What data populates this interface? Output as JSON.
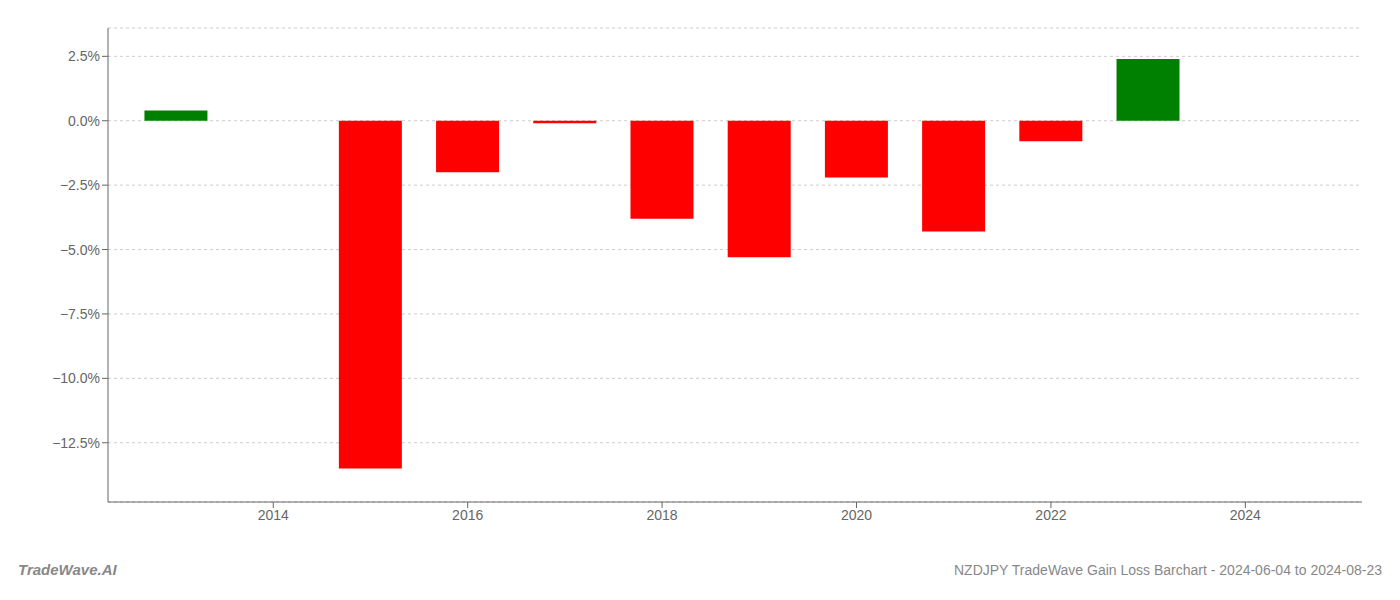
{
  "chart_data": {
    "type": "bar",
    "x": [
      2013,
      2015,
      2016,
      2017,
      2018,
      2019,
      2020,
      2021,
      2022,
      2023
    ],
    "values": [
      0.004,
      -0.135,
      -0.02,
      -0.001,
      -0.038,
      -0.053,
      -0.022,
      -0.043,
      -0.008,
      0.024
    ],
    "colors": [
      "#008000",
      "#ff0000",
      "#ff0000",
      "#ff0000",
      "#ff0000",
      "#ff0000",
      "#ff0000",
      "#ff0000",
      "#ff0000",
      "#008000"
    ],
    "xlim": [
      2012.3,
      2025.2
    ],
    "xticks": [
      2014,
      2016,
      2018,
      2020,
      2022,
      2024
    ],
    "ylim": [
      -0.148,
      0.036
    ],
    "yticks": [
      {
        "value": -0.125,
        "label": "−12.5%"
      },
      {
        "value": -0.1,
        "label": "−10.0%"
      },
      {
        "value": -0.075,
        "label": "−7.5%"
      },
      {
        "value": -0.05,
        "label": "−5.0%"
      },
      {
        "value": -0.025,
        "label": "−2.5%"
      },
      {
        "value": 0.0,
        "label": "0.0%"
      },
      {
        "value": 0.025,
        "label": "2.5%"
      }
    ],
    "grid": true,
    "annotations": [
      "TradeWave.AI",
      "NZDJPY TradeWave Gain Loss Barchart - 2024-06-04 to 2024-08-23"
    ]
  }
}
